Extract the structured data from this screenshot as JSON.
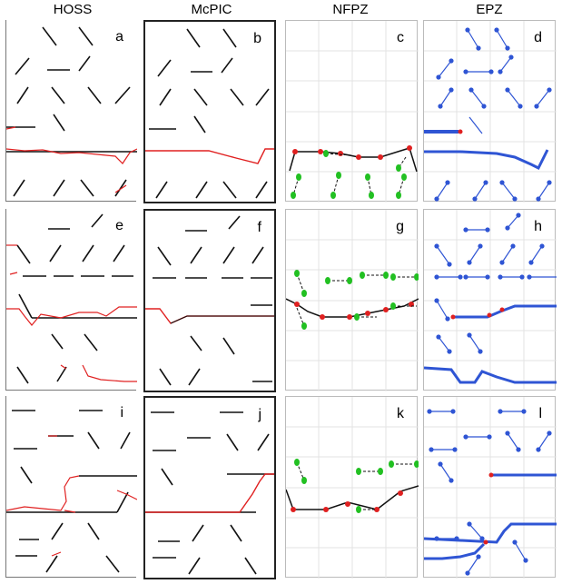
{
  "columns": [
    "HOSS",
    "McPIC",
    "NFPZ",
    "EPZ"
  ],
  "panel_labels": [
    "a",
    "b",
    "c",
    "d",
    "e",
    "f",
    "g",
    "h",
    "i",
    "j",
    "k",
    "l"
  ],
  "colors": {
    "fracture": "#111111",
    "crack": "#e02020",
    "epz_line": "#2f55d4",
    "nfpz_green": "#22c022",
    "nfpz_red": "#e02020"
  }
}
